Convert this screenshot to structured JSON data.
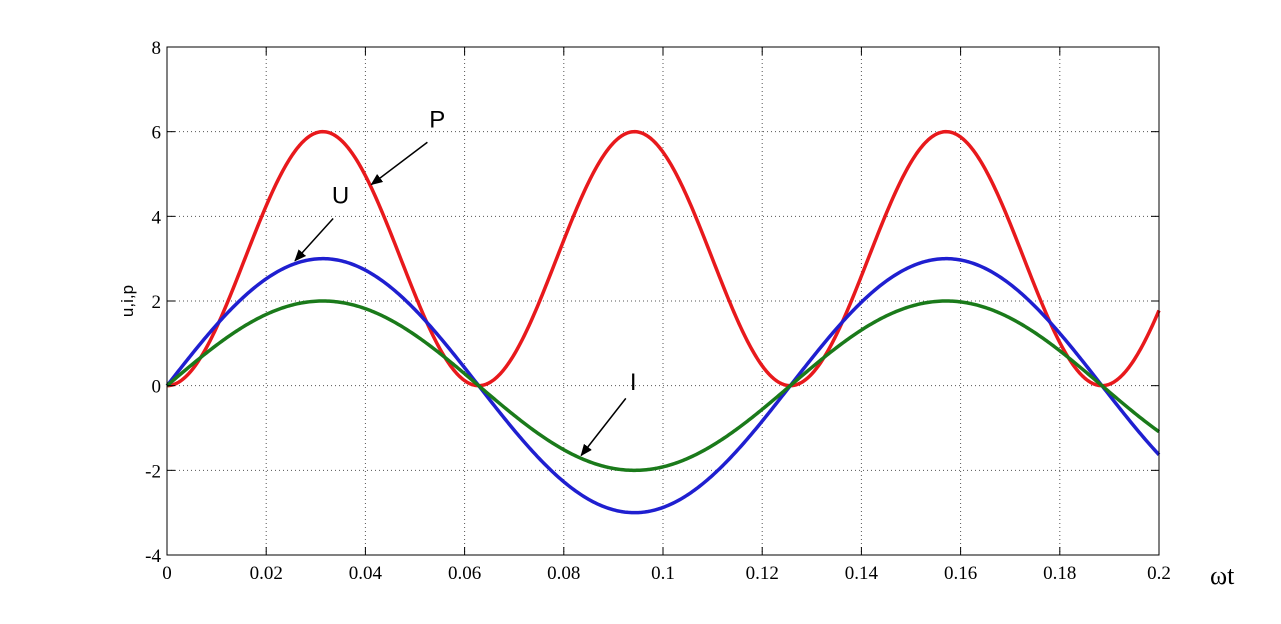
{
  "chart_data": {
    "type": "line",
    "ylabel": "u,i,p",
    "xlabel": "ωt",
    "xlim": [
      0,
      0.2
    ],
    "ylim": [
      -4,
      8
    ],
    "xticks": [
      0,
      0.02,
      0.04,
      0.06,
      0.08,
      0.1,
      0.12,
      0.14,
      0.16,
      0.18,
      0.2
    ],
    "xtick_labels": [
      "0",
      "0.02",
      "0.04",
      "0.06",
      "0.08",
      "0.1",
      "0.12",
      "0.14",
      "0.16",
      "0.18",
      "0.2"
    ],
    "yticks": [
      -4,
      -2,
      0,
      2,
      4,
      6,
      8
    ],
    "ytick_labels": [
      "-4",
      "-2",
      "0",
      "2",
      "4",
      "6",
      "8"
    ],
    "grid": true,
    "series": [
      {
        "key": "p",
        "color": "#e8191c",
        "formula": "6*sin(50*x)^2",
        "amplitude": 6,
        "frequency": 50,
        "form": "sin-squared"
      },
      {
        "key": "u",
        "color": "#1f1fd0",
        "formula": "3*sin(50*x)",
        "amplitude": 3,
        "frequency": 50,
        "form": "sin"
      },
      {
        "key": "i",
        "color": "#1a7a1a",
        "formula": "2*sin(50*x)",
        "amplitude": 2,
        "frequency": 50,
        "form": "sin"
      }
    ],
    "annotations": [
      {
        "text": "P",
        "series": "p",
        "label_at": [
          0.0545,
          6.1
        ],
        "arrow_from": [
          0.0525,
          5.75
        ],
        "arrow_to": [
          0.0412,
          4.75
        ]
      },
      {
        "text": "U",
        "series": "u",
        "label_at": [
          0.035,
          4.3
        ],
        "arrow_from": [
          0.0335,
          3.95
        ],
        "arrow_to": [
          0.0258,
          2.95
        ]
      },
      {
        "text": "I",
        "series": "i",
        "label_at": [
          0.094,
          -0.1
        ],
        "arrow_from": [
          0.0925,
          -0.3
        ],
        "arrow_to": [
          0.0835,
          -1.65
        ]
      }
    ]
  }
}
